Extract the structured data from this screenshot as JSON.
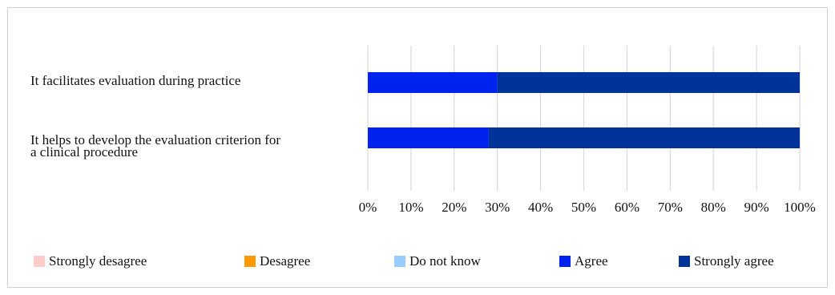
{
  "chart_data": {
    "type": "bar",
    "orientation": "horizontal",
    "stacked": true,
    "normalized": true,
    "categories": [
      "It facilitates evaluation during practice",
      "It helps to develop the evaluation criterion for a clinical procedure"
    ],
    "series": [
      {
        "name": "Strongly desagree",
        "color": "#ffcccc",
        "values": [
          0,
          0
        ]
      },
      {
        "name": "Desagree",
        "color": "#ff9900",
        "values": [
          0,
          0
        ]
      },
      {
        "name": "Do not know",
        "color": "#99ccff",
        "values": [
          0,
          0
        ]
      },
      {
        "name": "Agree",
        "color": "#0022ee",
        "values": [
          30,
          28
        ]
      },
      {
        "name": "Strongly agree",
        "color": "#003399",
        "values": [
          70,
          72
        ]
      }
    ],
    "xlim": [
      0,
      100
    ],
    "x_ticks": [
      "0%",
      "10%",
      "20%",
      "30%",
      "40%",
      "50%",
      "60%",
      "70%",
      "80%",
      "90%",
      "100%"
    ],
    "grid": true,
    "legend_position": "bottom"
  }
}
